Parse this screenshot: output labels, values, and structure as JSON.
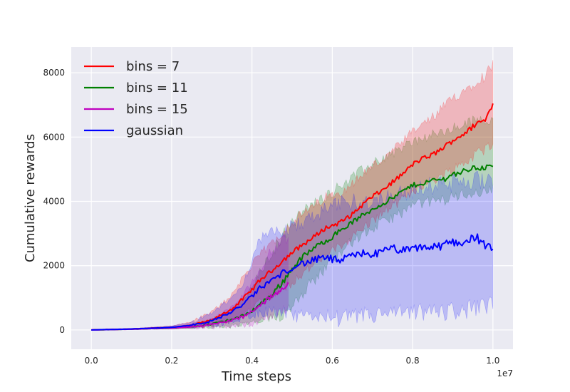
{
  "chart_data": {
    "type": "line",
    "title": "",
    "xlabel": "Time steps",
    "ylabel": "Cumulative rewards",
    "x_multiplier_label": "1e7",
    "xlim": [
      -0.05,
      1.05
    ],
    "ylim": [
      -600,
      8800
    ],
    "xticks": [
      0.0,
      0.2,
      0.4,
      0.6,
      0.8,
      1.0
    ],
    "xtick_labels": [
      "0.0",
      "0.2",
      "0.4",
      "0.6",
      "0.8",
      "1.0"
    ],
    "yticks": [
      0,
      2000,
      4000,
      6000,
      8000
    ],
    "ytick_labels": [
      "0",
      "2000",
      "4000",
      "6000",
      "8000"
    ],
    "grid": true,
    "legend_position": "top-left",
    "series": [
      {
        "name": "bins = 7",
        "color": "#ff0000",
        "x": [
          0.0,
          0.1,
          0.2,
          0.25,
          0.3,
          0.35,
          0.38,
          0.4,
          0.42,
          0.45,
          0.48,
          0.5,
          0.52,
          0.55,
          0.58,
          0.6,
          0.62,
          0.65,
          0.68,
          0.7,
          0.72,
          0.75,
          0.78,
          0.8,
          0.82,
          0.85,
          0.88,
          0.9,
          0.92,
          0.94,
          0.96,
          0.98,
          1.0
        ],
        "y": [
          0,
          30,
          80,
          150,
          300,
          650,
          1000,
          1250,
          1550,
          1850,
          2200,
          2400,
          2600,
          2850,
          3150,
          3250,
          3350,
          3600,
          3950,
          4150,
          4300,
          4600,
          4900,
          5150,
          5300,
          5450,
          5700,
          5900,
          6050,
          6200,
          6450,
          6500,
          7050
        ],
        "lower": [
          0,
          15,
          50,
          80,
          160,
          300,
          500,
          700,
          900,
          1100,
          1300,
          1500,
          1700,
          2000,
          2250,
          2450,
          2600,
          2900,
          3200,
          3400,
          3600,
          3850,
          4100,
          4300,
          4500,
          4650,
          4850,
          5000,
          5150,
          5300,
          5500,
          5600,
          5900
        ],
        "upper": [
          0,
          45,
          120,
          260,
          550,
          1100,
          1700,
          2000,
          2350,
          2700,
          3100,
          3350,
          3550,
          3800,
          4100,
          4200,
          4300,
          4550,
          4900,
          5100,
          5250,
          5550,
          5900,
          6150,
          6350,
          6600,
          6950,
          7200,
          7400,
          7550,
          7800,
          7900,
          8300
        ]
      },
      {
        "name": "bins = 11",
        "color": "#008000",
        "x": [
          0.0,
          0.1,
          0.2,
          0.25,
          0.3,
          0.35,
          0.38,
          0.4,
          0.42,
          0.45,
          0.48,
          0.5,
          0.52,
          0.55,
          0.58,
          0.6,
          0.62,
          0.65,
          0.68,
          0.7,
          0.72,
          0.75,
          0.78,
          0.8,
          0.82,
          0.85,
          0.88,
          0.9,
          0.92,
          0.94,
          0.96,
          0.98,
          1.0
        ],
        "y": [
          0,
          25,
          60,
          100,
          180,
          330,
          450,
          600,
          800,
          1100,
          1550,
          1900,
          2200,
          2500,
          2750,
          2900,
          3100,
          3350,
          3600,
          3750,
          3900,
          4100,
          4350,
          4500,
          4550,
          4650,
          4700,
          4850,
          4900,
          5000,
          5050,
          5050,
          5100
        ],
        "lower": [
          0,
          12,
          30,
          50,
          80,
          120,
          160,
          220,
          260,
          330,
          500,
          800,
          1100,
          1500,
          1900,
          2200,
          2450,
          2750,
          3000,
          3150,
          3300,
          3500,
          3700,
          3850,
          3950,
          4000,
          4050,
          4150,
          4200,
          4250,
          4300,
          4300,
          4350
        ],
        "upper": [
          0,
          40,
          100,
          170,
          320,
          650,
          950,
          1300,
          1800,
          2400,
          3000,
          3300,
          3600,
          3900,
          4150,
          4300,
          4500,
          4750,
          5000,
          5150,
          5300,
          5500,
          5700,
          5850,
          5950,
          6050,
          6150,
          6250,
          6350,
          6450,
          6500,
          6550,
          6600
        ]
      },
      {
        "name": "bins = 15",
        "color": "#bf00bf",
        "x": [
          0.0,
          0.1,
          0.2,
          0.25,
          0.3,
          0.35,
          0.38,
          0.4,
          0.42,
          0.44,
          0.46,
          0.48,
          0.49
        ],
        "y": [
          0,
          25,
          60,
          100,
          170,
          300,
          420,
          560,
          750,
          950,
          1150,
          1350,
          1450
        ],
        "lower": [
          0,
          12,
          30,
          50,
          80,
          120,
          160,
          220,
          300,
          400,
          500,
          650,
          700
        ],
        "upper": [
          0,
          40,
          100,
          170,
          320,
          700,
          1100,
          1500,
          1900,
          2300,
          2600,
          2800,
          2900
        ]
      },
      {
        "name": "gaussian",
        "color": "#0000ff",
        "x": [
          0.0,
          0.1,
          0.2,
          0.25,
          0.3,
          0.35,
          0.38,
          0.4,
          0.42,
          0.45,
          0.48,
          0.5,
          0.52,
          0.55,
          0.58,
          0.6,
          0.62,
          0.65,
          0.68,
          0.7,
          0.72,
          0.75,
          0.78,
          0.8,
          0.82,
          0.85,
          0.88,
          0.9,
          0.92,
          0.94,
          0.96,
          0.98,
          1.0
        ],
        "y": [
          0,
          30,
          80,
          150,
          280,
          560,
          820,
          1050,
          1300,
          1550,
          1800,
          1950,
          2050,
          2150,
          2250,
          2200,
          2150,
          2300,
          2400,
          2350,
          2400,
          2550,
          2450,
          2500,
          2600,
          2550,
          2650,
          2750,
          2700,
          2800,
          2900,
          2600,
          2500
        ],
        "lower": [
          0,
          15,
          50,
          80,
          140,
          250,
          400,
          500,
          550,
          600,
          500,
          400,
          400,
          450,
          450,
          400,
          350,
          400,
          450,
          450,
          480,
          500,
          520,
          520,
          550,
          550,
          580,
          600,
          620,
          650,
          680,
          700,
          800
        ],
        "upper": [
          0,
          45,
          120,
          240,
          500,
          1000,
          1500,
          2200,
          2800,
          3000,
          3100,
          3200,
          3300,
          3500,
          3700,
          3800,
          3900,
          4000,
          4000,
          4000,
          4100,
          4200,
          4300,
          4300,
          4400,
          4500,
          4500,
          4550,
          4600,
          4650,
          4650,
          4700,
          4700
        ]
      }
    ]
  }
}
